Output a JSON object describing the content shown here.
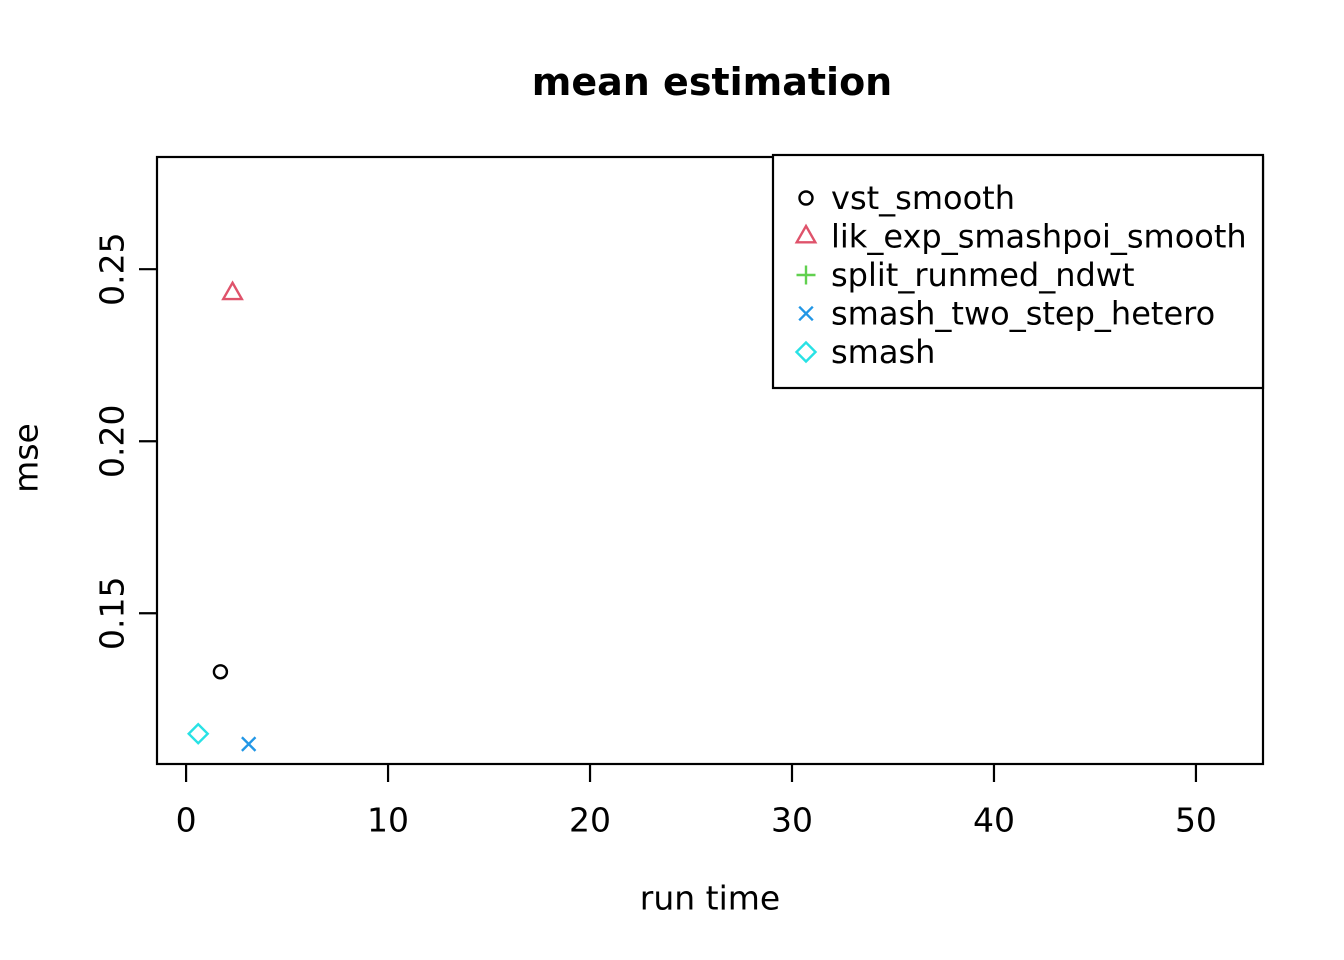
{
  "chart_data": {
    "type": "scatter",
    "title": "mean estimation",
    "xlabel": "run time",
    "ylabel": "mse",
    "xlim": [
      -1.44,
      53.32
    ],
    "ylim": [
      0.1062,
      0.2826
    ],
    "x_ticks": [
      0,
      10,
      20,
      30,
      40,
      50
    ],
    "x_tick_labels": [
      "0",
      "10",
      "20",
      "30",
      "40",
      "50"
    ],
    "y_ticks": [
      0.15,
      0.2,
      0.25
    ],
    "y_tick_labels": [
      "0.15",
      "0.20",
      "0.25"
    ],
    "grid": false,
    "legend_position": "topright",
    "series": [
      {
        "name": "vst_smooth",
        "marker": "circle",
        "color": "#000000",
        "points": [
          {
            "x": 1.7,
            "y": 0.133
          }
        ]
      },
      {
        "name": "lik_exp_smashpoi_smooth",
        "marker": "triangle",
        "color": "#DF536B",
        "points": [
          {
            "x": 2.3,
            "y": 0.243
          }
        ]
      },
      {
        "name": "split_runmed_ndwt",
        "marker": "plus",
        "color": "#61D04F",
        "points": []
      },
      {
        "name": "smash_two_step_hetero",
        "marker": "x",
        "color": "#2297E6",
        "points": [
          {
            "x": 3.1,
            "y": 0.112
          }
        ]
      },
      {
        "name": "smash",
        "marker": "diamond",
        "color": "#28E2E5",
        "points": [
          {
            "x": 0.6,
            "y": 0.115
          }
        ]
      }
    ]
  }
}
